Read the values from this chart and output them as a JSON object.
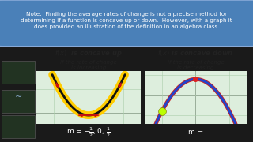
{
  "bg_color": "#1a1a1a",
  "note_box_color": "#4a80b8",
  "note_text": "Note:  Finding the average rates of change is not a precise method for\ndetermining if a function is concave up or down.  However, with a graph it\ndoes provided an illustration of the definition in an algebra class.",
  "grid_bg": "#ddeedd",
  "parabola_yellow": "#ffcc00",
  "parabola_black": "#111111",
  "parabola_blue": "#2244cc",
  "parabola_red_outline": "#cc2222",
  "arrow_color": "#cc1111",
  "dot_yellow_green": "#bbff00",
  "dot_red": "#dd2222",
  "grid_color": "#aaccaa",
  "axis_color": "#888888",
  "text_dark": "#222222",
  "text_white": "#ffffff",
  "sidebar_color": "#111111",
  "sidebar_thumbnail_bg": "#ccddcc",
  "note_font_size": 5.2,
  "label_font_size": 6.0,
  "sub_font_size": 5.5
}
